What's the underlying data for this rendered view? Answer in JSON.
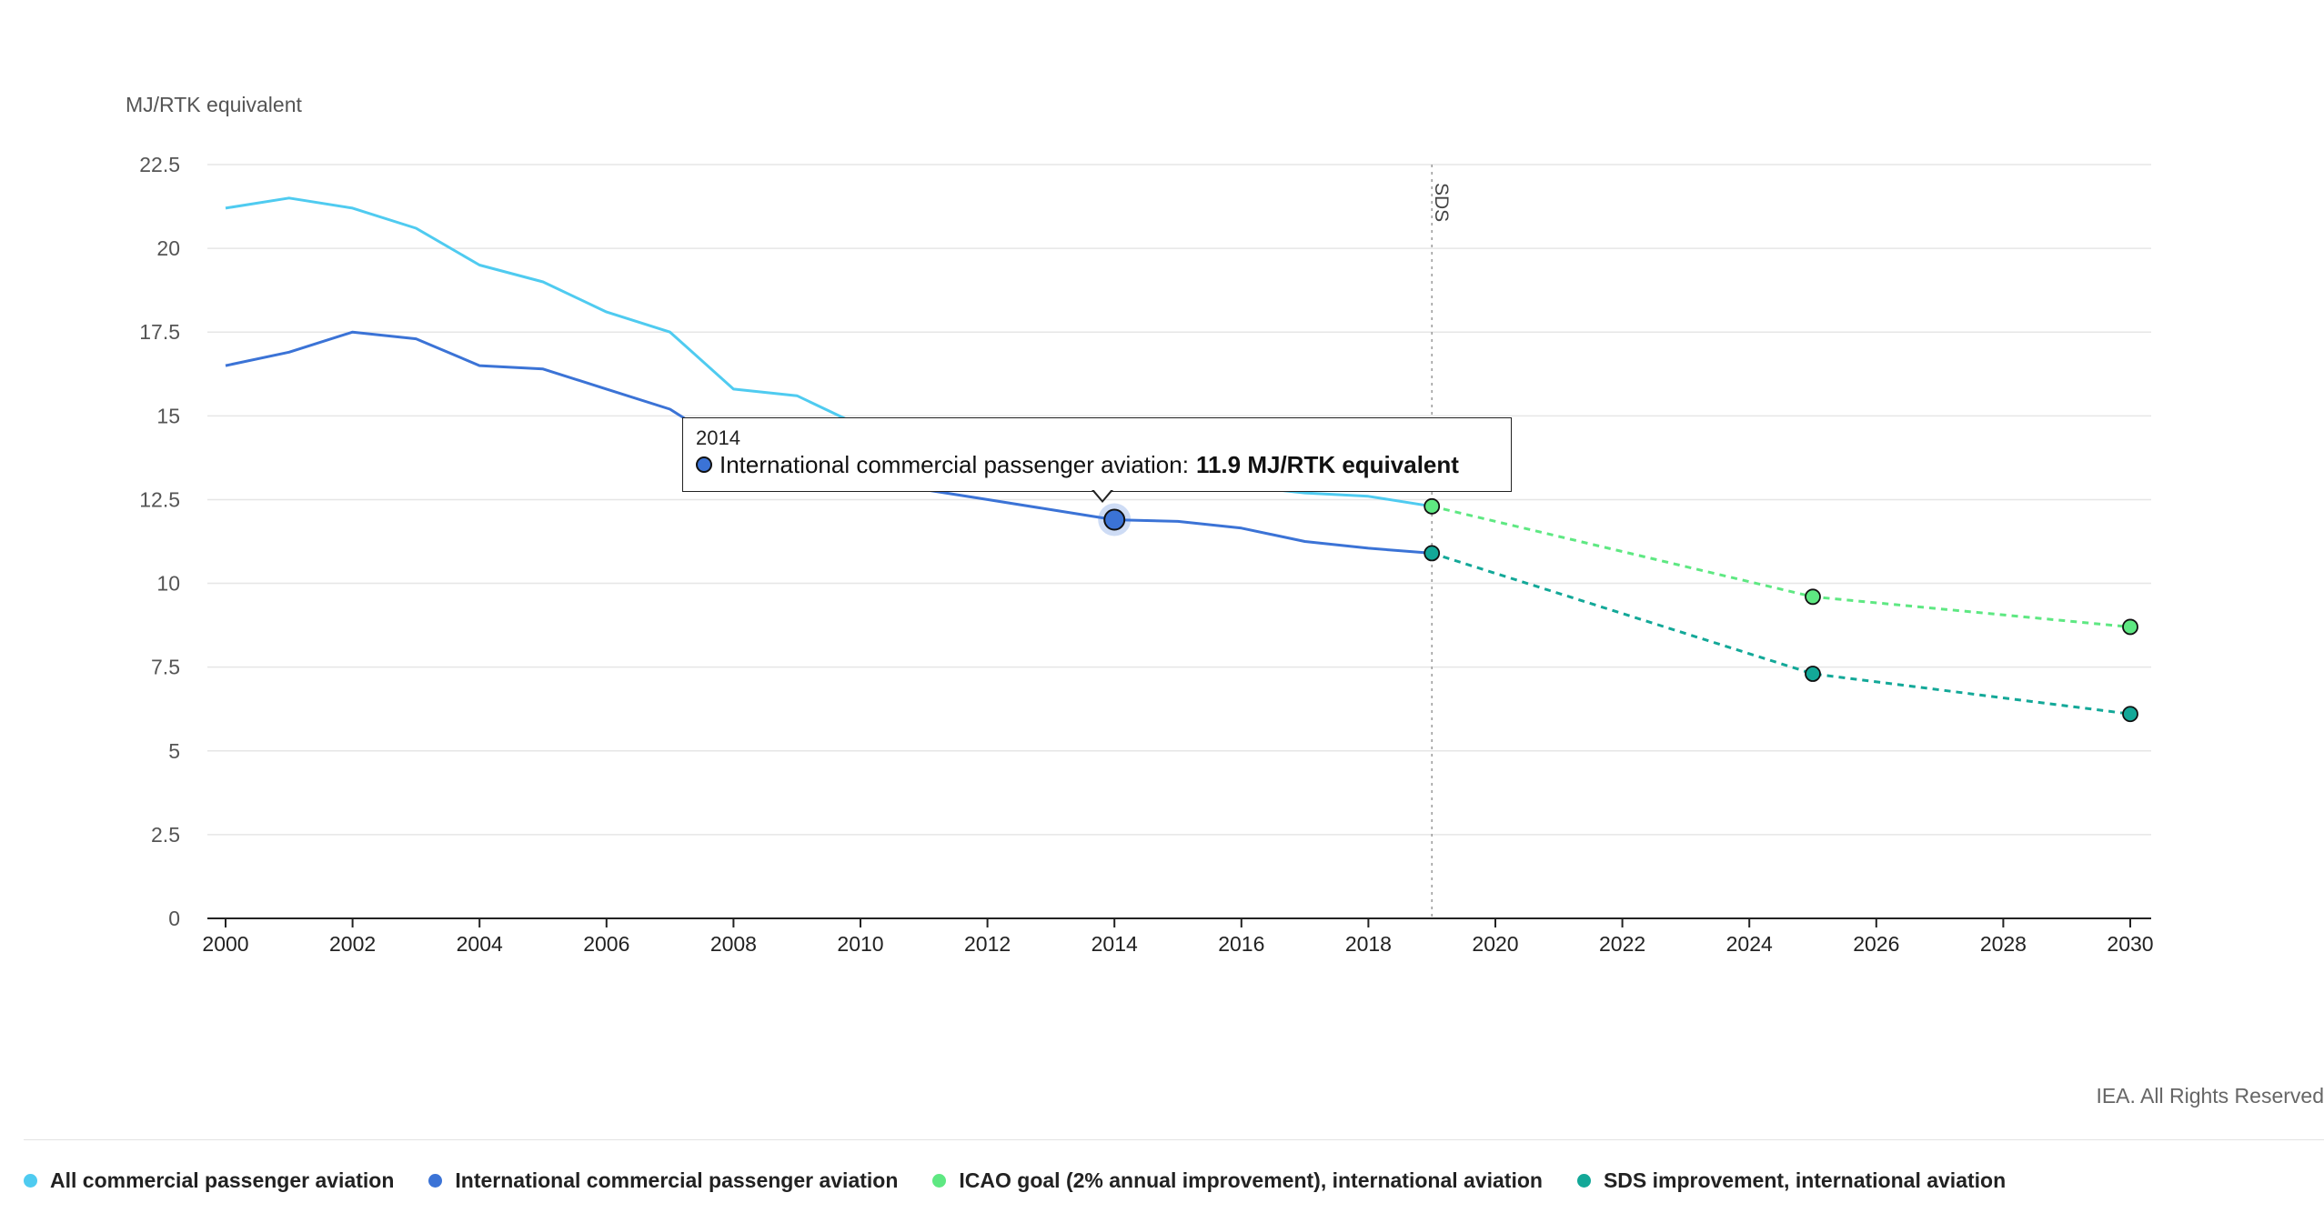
{
  "chart_data": {
    "type": "line",
    "ylabel": "MJ/RTK equivalent",
    "xlabel": "",
    "title": "",
    "xlim": [
      2000,
      2030
    ],
    "ylim": [
      0,
      22.5
    ],
    "x_ticks": [
      2000,
      2002,
      2004,
      2006,
      2008,
      2010,
      2012,
      2014,
      2016,
      2018,
      2020,
      2022,
      2024,
      2026,
      2028,
      2030
    ],
    "y_ticks": [
      0,
      2.5,
      5,
      7.5,
      10,
      12.5,
      15,
      17.5,
      20,
      22.5
    ],
    "y_tick_labels": [
      "0",
      "2.5",
      "5",
      "7.5",
      "10",
      "12.5",
      "15",
      "17.5",
      "20",
      "22.5"
    ],
    "grid": "horizontal",
    "legend_position": "bottom",
    "series": [
      {
        "name": "All commercial passenger aviation",
        "color": "#4fcbf0",
        "style": "solid",
        "x": [
          2000,
          2001,
          2002,
          2003,
          2004,
          2005,
          2006,
          2007,
          2008,
          2009,
          2010,
          2011,
          2012,
          2013,
          2014,
          2015,
          2016,
          2017,
          2018,
          2019
        ],
        "y": [
          21.2,
          21.5,
          21.2,
          20.6,
          19.5,
          19.0,
          18.1,
          17.5,
          15.8,
          15.6,
          14.7,
          14.3,
          13.9,
          13.6,
          13.3,
          13.1,
          12.9,
          12.7,
          12.6,
          12.3
        ]
      },
      {
        "name": "International commercial passenger aviation",
        "color": "#3b73d6",
        "style": "solid",
        "x": [
          2000,
          2001,
          2002,
          2003,
          2004,
          2005,
          2006,
          2007,
          2008,
          2009,
          2010,
          2011,
          2012,
          2013,
          2014,
          2015,
          2016,
          2017,
          2018,
          2019
        ],
        "y": [
          16.5,
          16.9,
          17.5,
          17.3,
          16.5,
          16.4,
          15.8,
          15.2,
          14.0,
          13.6,
          13.1,
          12.8,
          12.5,
          12.2,
          11.9,
          11.85,
          11.65,
          11.25,
          11.05,
          10.9
        ]
      },
      {
        "name": "ICAO goal (2% annual improvement), international aviation",
        "color": "#5ee882",
        "style": "dashed",
        "x": [
          2019,
          2025,
          2030
        ],
        "y": [
          12.3,
          9.6,
          8.7
        ]
      },
      {
        "name": "SDS improvement, international aviation",
        "color": "#13a898",
        "style": "dashed",
        "x": [
          2019,
          2025,
          2030
        ],
        "y": [
          10.9,
          7.3,
          6.1
        ]
      }
    ],
    "annotations": [
      {
        "text": "SDS",
        "x": 2019
      }
    ],
    "tooltip": {
      "year": "2014",
      "series": "International commercial passenger aviation",
      "label": "International commercial passenger aviation:",
      "value": "11.9 MJ/RTK equivalent",
      "x": 2014,
      "y": 11.9
    }
  },
  "footer": {
    "rights": "IEA. All Rights Reserved"
  }
}
